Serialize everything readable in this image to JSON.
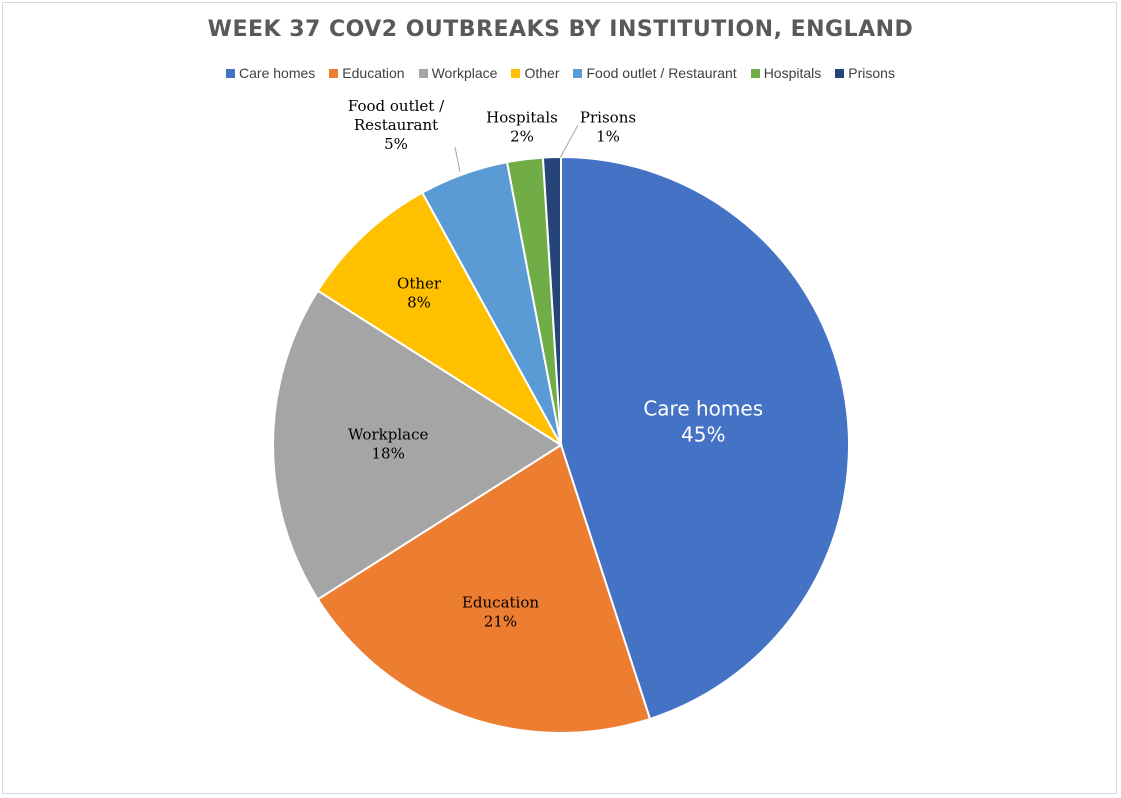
{
  "chart_data": {
    "type": "pie",
    "title": "WEEK 37 COV2 OUTBREAKS BY INSTITUTION, ENGLAND",
    "legend_position": "top",
    "slices": [
      {
        "name": "Care homes",
        "legend": "Care homes",
        "label_lines": [
          "Care homes"
        ],
        "value": 45,
        "pct_label": "45%",
        "color": "#4472c4"
      },
      {
        "name": "Education",
        "legend": "Education",
        "label_lines": [
          "Education"
        ],
        "value": 21,
        "pct_label": "21%",
        "color": "#ed7d31"
      },
      {
        "name": "Workplace",
        "legend": "Workplace",
        "label_lines": [
          "Workplace"
        ],
        "value": 18,
        "pct_label": "18%",
        "color": "#a5a5a5"
      },
      {
        "name": "Other",
        "legend": "Other",
        "label_lines": [
          "Other"
        ],
        "value": 8,
        "pct_label": "8%",
        "color": "#ffc000"
      },
      {
        "name": "Food outlet / Restaurant",
        "legend": "Food outlet / Restaurant",
        "label_lines": [
          "Food outlet /",
          "Restaurant"
        ],
        "value": 5,
        "pct_label": "5%",
        "color": "#5b9bd5"
      },
      {
        "name": "Hospitals",
        "legend": "Hospitals",
        "label_lines": [
          "Hospitals"
        ],
        "value": 2,
        "pct_label": "2%",
        "color": "#70ad47"
      },
      {
        "name": "Prisons",
        "legend": "Prisons",
        "label_lines": [
          "Prisons"
        ],
        "value": 1,
        "pct_label": "1%",
        "color": "#264478"
      }
    ]
  }
}
